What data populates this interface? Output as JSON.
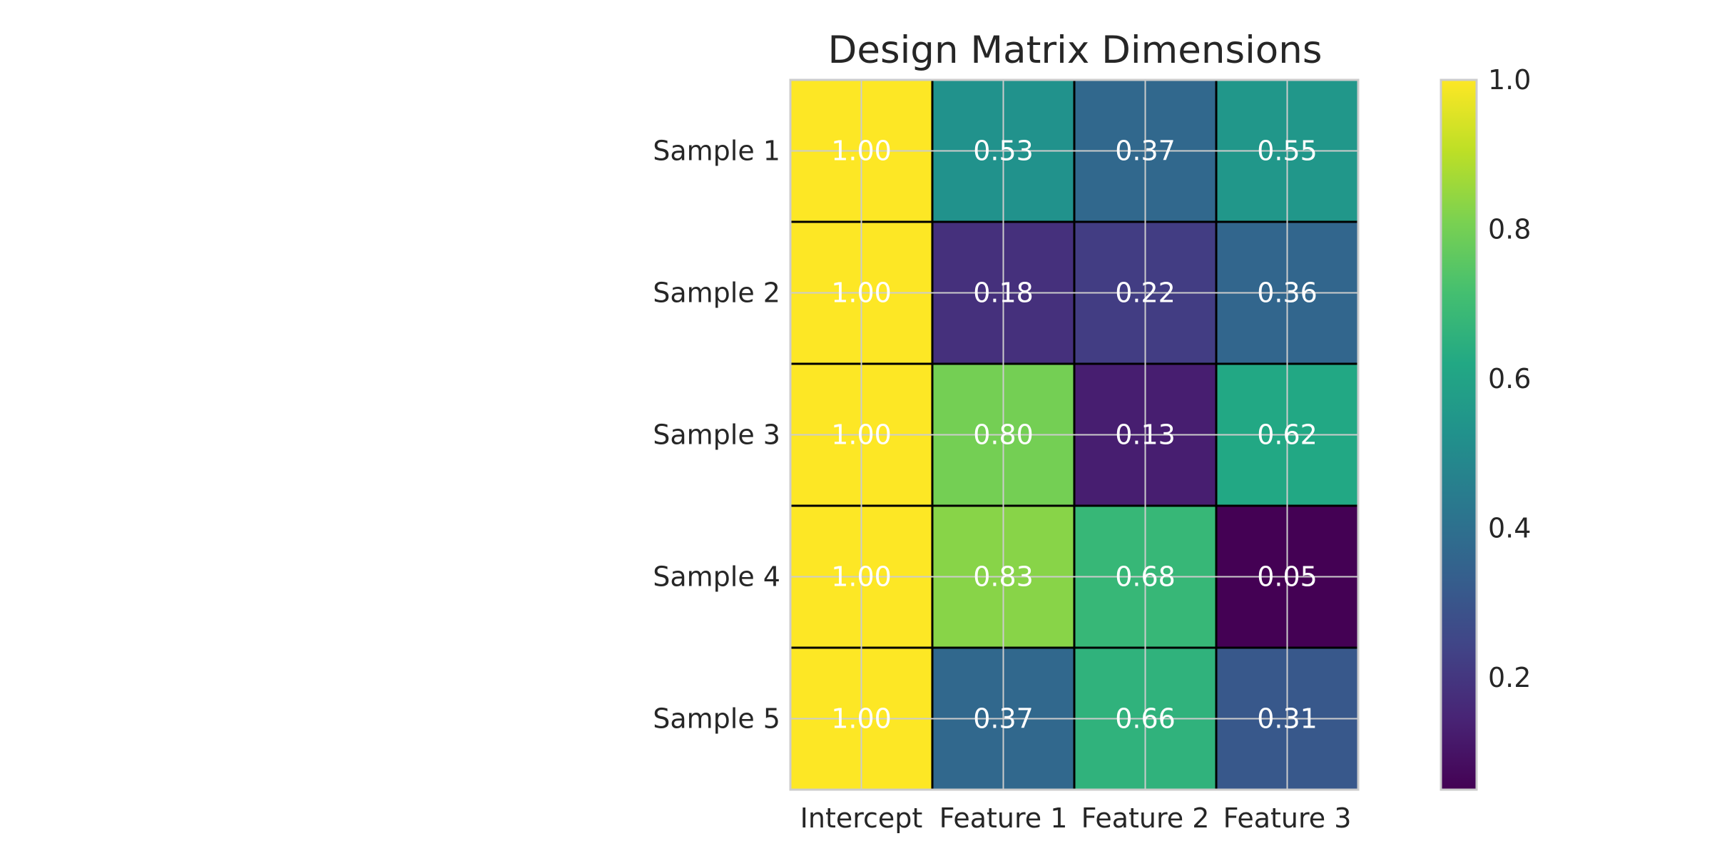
{
  "chart_data": {
    "type": "heatmap",
    "title": "Design Matrix Dimensions",
    "rows": [
      "Sample 1",
      "Sample 2",
      "Sample 3",
      "Sample 4",
      "Sample 5"
    ],
    "columns": [
      "Intercept",
      "Feature 1",
      "Feature 2",
      "Feature 3"
    ],
    "values": [
      [
        1.0,
        0.53,
        0.37,
        0.55
      ],
      [
        1.0,
        0.18,
        0.22,
        0.36
      ],
      [
        1.0,
        0.8,
        0.13,
        0.62
      ],
      [
        1.0,
        0.83,
        0.68,
        0.05
      ],
      [
        1.0,
        0.37,
        0.66,
        0.31
      ]
    ],
    "value_format": "0.00",
    "colormap": "viridis",
    "color_range": [
      0.05,
      1.0
    ],
    "colorbar": {
      "ticks": [
        0.2,
        0.4,
        0.6,
        0.8,
        1.0
      ],
      "tick_labels": [
        "0.2",
        "0.4",
        "0.6",
        "0.8",
        "1.0"
      ]
    },
    "grid": true,
    "cell_edge_color": "#000000"
  }
}
